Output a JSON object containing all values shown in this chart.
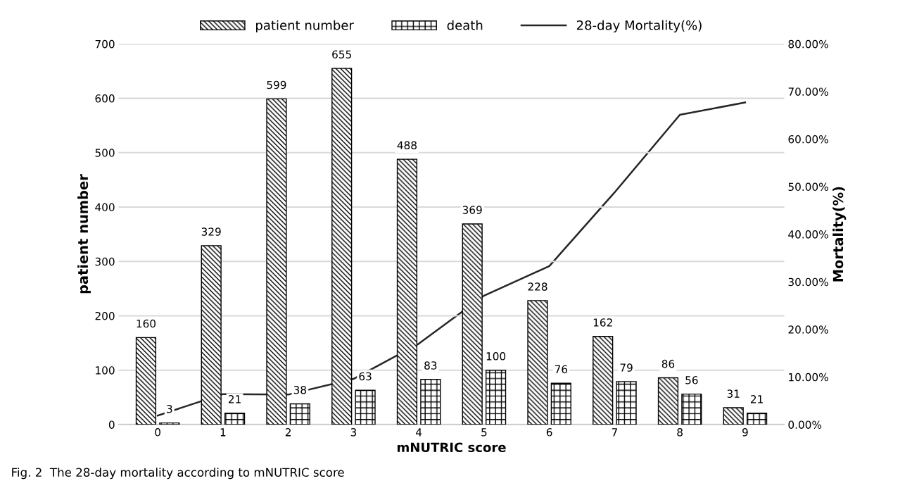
{
  "chart_data": {
    "type": "bar",
    "xlabel": "mNUTRIC score",
    "ylabel": "patient number",
    "y2label": "Mortality(%)",
    "categories": [
      "0",
      "1",
      "2",
      "3",
      "4",
      "5",
      "6",
      "7",
      "8",
      "9"
    ],
    "series": [
      {
        "name": "patient number",
        "color": "#000000",
        "values": [
          160,
          329,
          599,
          655,
          488,
          369,
          228,
          162,
          86,
          31
        ],
        "value_labels": [
          "160",
          "329",
          "599",
          "655",
          "488",
          "369",
          "228",
          "162",
          "86",
          "31"
        ]
      },
      {
        "name": "death",
        "color": "#000000",
        "values": [
          3,
          21,
          38,
          63,
          83,
          100,
          76,
          79,
          56,
          21
        ],
        "value_labels": [
          "3",
          "21",
          "38",
          "63",
          "83",
          "100",
          "76",
          "79",
          "56",
          "21"
        ]
      },
      {
        "name": "28-day Mortality(%)",
        "type": "line",
        "axis": "y2",
        "color": "#262626",
        "values": [
          1.9,
          6.4,
          6.3,
          9.6,
          17.0,
          27.1,
          33.3,
          48.8,
          65.1,
          67.7
        ]
      }
    ],
    "ylim": [
      0,
      700
    ],
    "yticks": [
      0,
      100,
      200,
      300,
      400,
      500,
      600,
      700
    ],
    "y2lim": [
      0,
      80
    ],
    "y2ticks": [
      {
        "value": 0,
        "label": "0.00%"
      },
      {
        "value": 10,
        "label": "10.00%"
      },
      {
        "value": 20,
        "label": "20.00%"
      },
      {
        "value": 30,
        "label": "30.00%"
      },
      {
        "value": 40,
        "label": "40.00%"
      },
      {
        "value": 50,
        "label": "50.00%"
      },
      {
        "value": 60,
        "label": "60.00%"
      },
      {
        "value": 70,
        "label": "70.00%"
      },
      {
        "value": 80,
        "label": "80.00%"
      }
    ],
    "grid": "y",
    "legend": "top",
    "annotations": [
      "Fig. 2  The 28-day mortality according to mNUTRIC score"
    ]
  }
}
